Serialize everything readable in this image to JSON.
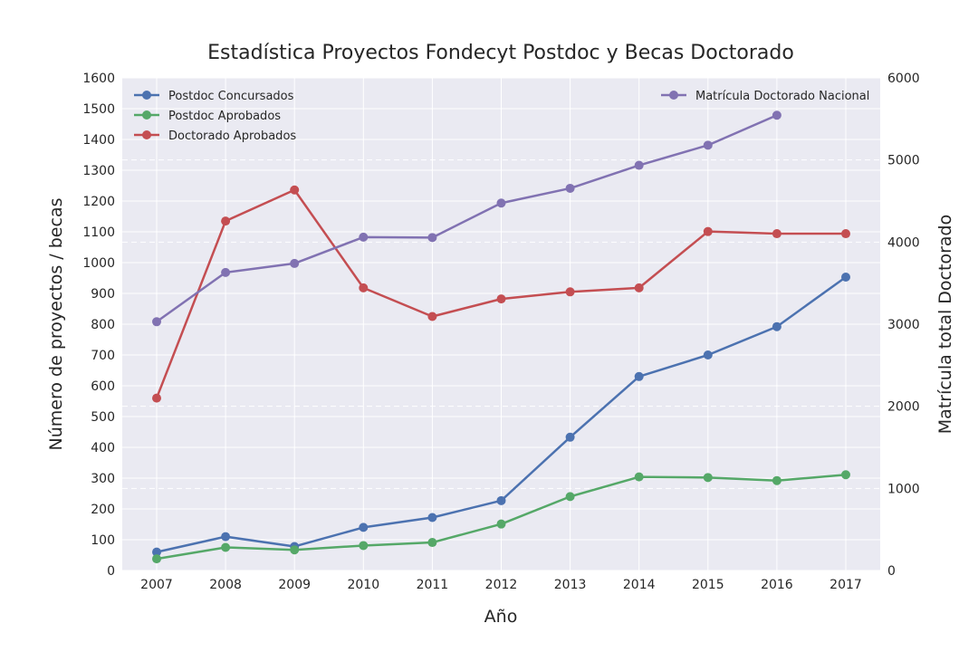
{
  "chart_data": {
    "type": "line",
    "title": "Estadística Proyectos Fondecyt Postdoc y Becas Doctorado",
    "xlabel": "Año",
    "ylabel": "Número de proyectos / becas",
    "y2label": "Matrícula total Doctorado",
    "x": [
      "2007",
      "2008",
      "2009",
      "2010",
      "2011",
      "2012",
      "2013",
      "2014",
      "2015",
      "2016",
      "2017"
    ],
    "ylim": [
      0,
      1600
    ],
    "y2lim": [
      0,
      6000
    ],
    "yticks": [
      0,
      100,
      200,
      300,
      400,
      500,
      600,
      700,
      800,
      900,
      1000,
      1100,
      1200,
      1300,
      1400,
      1500,
      1600
    ],
    "y2ticks": [
      0,
      1000,
      2000,
      3000,
      4000,
      5000,
      6000
    ],
    "grid": true,
    "series": [
      {
        "name": "Postdoc Concursados",
        "axis": "left",
        "color": "#4c72b0",
        "values": [
          60,
          110,
          78,
          140,
          172,
          227,
          433,
          630,
          700,
          792,
          953
        ]
      },
      {
        "name": "Postdoc Aprobados",
        "axis": "left",
        "color": "#55a868",
        "values": [
          38,
          75,
          67,
          81,
          91,
          151,
          240,
          304,
          302,
          292,
          311
        ]
      },
      {
        "name": "Doctorado Aprobados",
        "axis": "left",
        "color": "#c44e52",
        "values": [
          560,
          1135,
          1236,
          918,
          825,
          882,
          905,
          918,
          1101,
          1094,
          1094
        ]
      },
      {
        "name": "Matrícula Doctorado Nacional",
        "axis": "right",
        "color": "#8172b2",
        "values": [
          3030,
          3630,
          3740,
          4060,
          4055,
          4475,
          4655,
          4935,
          5180,
          5545,
          null
        ]
      }
    ],
    "legend_left": [
      "Postdoc Concursados",
      "Postdoc Aprobados",
      "Doctorado Aprobados"
    ],
    "legend_right": [
      "Matrícula Doctorado Nacional"
    ],
    "legend_placement": "upper-left and upper-right"
  }
}
